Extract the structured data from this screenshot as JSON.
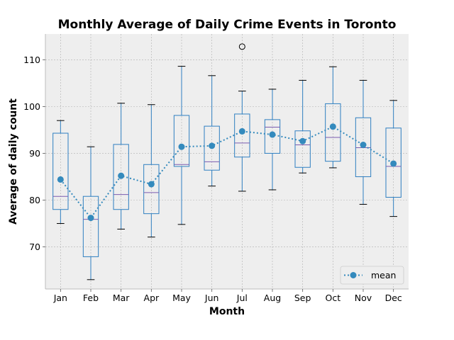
{
  "chart_data": {
    "type": "box",
    "title": "Monthly Average of Daily Crime Events in Toronto",
    "xlabel": "Month",
    "ylabel": "Average of daily count",
    "ylim": [
      61,
      115.5
    ],
    "yticks": [
      70,
      80,
      90,
      100,
      110
    ],
    "grid": true,
    "legend_position": "lower-right",
    "colors": {
      "box": "#2f7fc1",
      "median": "#7a5cb0",
      "mean": "#348abd",
      "background": "#eeeeee",
      "grid": "#b0b0b0"
    },
    "categories": [
      "Jan",
      "Feb",
      "Mar",
      "Apr",
      "May",
      "Jun",
      "Jul",
      "Aug",
      "Sep",
      "Oct",
      "Nov",
      "Dec"
    ],
    "boxes": [
      {
        "whislo": 75.0,
        "q1": 78.0,
        "med": 80.8,
        "q3": 94.3,
        "whishi": 97.0,
        "fliers": []
      },
      {
        "whislo": 63.0,
        "q1": 67.9,
        "med": 75.9,
        "q3": 80.8,
        "whishi": 91.4,
        "fliers": []
      },
      {
        "whislo": 73.8,
        "q1": 78.0,
        "med": 81.2,
        "q3": 91.9,
        "whishi": 100.7,
        "fliers": []
      },
      {
        "whislo": 72.1,
        "q1": 77.1,
        "med": 81.6,
        "q3": 87.6,
        "whishi": 100.4,
        "fliers": []
      },
      {
        "whislo": 74.8,
        "q1": 87.2,
        "med": 87.6,
        "q3": 98.1,
        "whishi": 108.6,
        "fliers": []
      },
      {
        "whislo": 83.0,
        "q1": 86.4,
        "med": 88.2,
        "q3": 95.8,
        "whishi": 106.6,
        "fliers": []
      },
      {
        "whislo": 81.9,
        "q1": 89.2,
        "med": 92.2,
        "q3": 98.4,
        "whishi": 103.3,
        "fliers": [
          112.8
        ]
      },
      {
        "whislo": 82.2,
        "q1": 90.0,
        "med": 95.6,
        "q3": 97.2,
        "whishi": 103.7,
        "fliers": []
      },
      {
        "whislo": 85.8,
        "q1": 87.0,
        "med": 91.8,
        "q3": 94.8,
        "whishi": 105.6,
        "fliers": []
      },
      {
        "whislo": 86.9,
        "q1": 88.3,
        "med": 93.4,
        "q3": 100.6,
        "whishi": 108.5,
        "fliers": []
      },
      {
        "whislo": 79.1,
        "q1": 85.0,
        "med": 91.2,
        "q3": 97.6,
        "whishi": 105.6,
        "fliers": []
      },
      {
        "whislo": 76.5,
        "q1": 80.6,
        "med": 87.2,
        "q3": 95.4,
        "whishi": 101.3,
        "fliers": []
      }
    ],
    "series": [
      {
        "name": "mean",
        "values": [
          84.4,
          76.2,
          85.2,
          83.4,
          91.4,
          91.6,
          94.7,
          94.0,
          92.6,
          95.7,
          91.8,
          87.8
        ]
      }
    ]
  }
}
